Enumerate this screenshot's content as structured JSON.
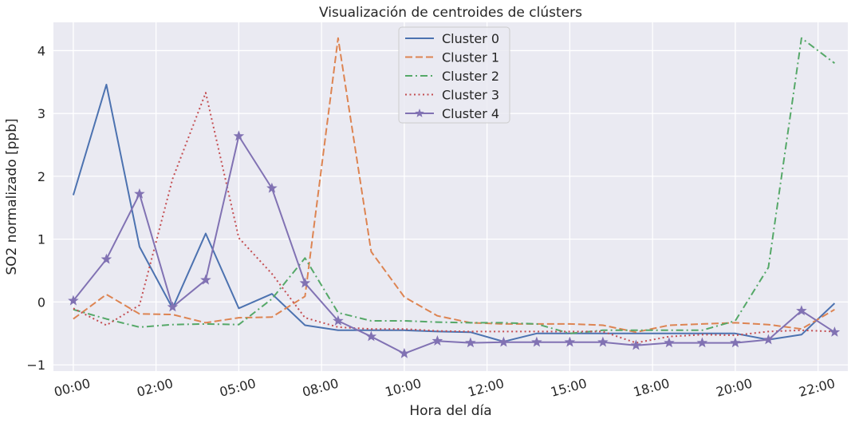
{
  "chart_data": {
    "type": "line",
    "title": "Visualización de centroides de clústers",
    "xlabel": "Hora del día",
    "ylabel": "SO2 normalizado [ppb]",
    "x_tick_labels": [
      "00:00",
      "02:00",
      "05:00",
      "08:00",
      "10:00",
      "12:00",
      "15:00",
      "18:00",
      "20:00",
      "22:00"
    ],
    "x_tick_positions": [
      0,
      2.5,
      5,
      7.5,
      10,
      12.5,
      15,
      17.5,
      20,
      22.5
    ],
    "xlim": [
      -0.6,
      23.4
    ],
    "ylim": [
      -1.1,
      4.45
    ],
    "y_ticks": [
      -1,
      0,
      1,
      2,
      3,
      4
    ],
    "x": [
      0,
      1,
      2,
      3,
      4,
      5,
      6,
      7,
      8,
      9,
      10,
      11,
      12,
      13,
      14,
      15,
      16,
      17,
      18,
      19,
      20,
      21,
      22,
      23
    ],
    "series": [
      {
        "name": "Cluster 0",
        "color": "#4c72b0",
        "dash": "solid",
        "marker": "none",
        "values": [
          1.7,
          3.46,
          0.88,
          -0.1,
          1.09,
          -0.1,
          0.13,
          -0.37,
          -0.45,
          -0.45,
          -0.45,
          -0.47,
          -0.48,
          -0.63,
          -0.5,
          -0.5,
          -0.5,
          -0.5,
          -0.5,
          -0.5,
          -0.5,
          -0.6,
          -0.52,
          -0.02
        ]
      },
      {
        "name": "Cluster 1",
        "color": "#dd8452",
        "dash": "dashed",
        "marker": "none",
        "values": [
          -0.27,
          0.12,
          -0.19,
          -0.2,
          -0.33,
          -0.25,
          -0.24,
          0.09,
          4.2,
          0.8,
          0.08,
          -0.22,
          -0.33,
          -0.35,
          -0.35,
          -0.35,
          -0.37,
          -0.48,
          -0.37,
          -0.35,
          -0.33,
          -0.36,
          -0.43,
          -0.12
        ]
      },
      {
        "name": "Cluster 2",
        "color": "#55a868",
        "dash": "dashdot",
        "marker": "none",
        "values": [
          -0.12,
          -0.27,
          -0.4,
          -0.36,
          -0.35,
          -0.36,
          0.05,
          0.7,
          -0.17,
          -0.3,
          -0.3,
          -0.32,
          -0.33,
          -0.33,
          -0.35,
          -0.5,
          -0.45,
          -0.45,
          -0.45,
          -0.45,
          -0.3,
          0.55,
          4.2,
          3.8
        ]
      },
      {
        "name": "Cluster 3",
        "color": "#c44e52",
        "dash": "dotted",
        "marker": "none",
        "values": [
          -0.1,
          -0.37,
          -0.05,
          1.96,
          3.33,
          1.02,
          0.45,
          -0.25,
          -0.4,
          -0.43,
          -0.43,
          -0.46,
          -0.47,
          -0.47,
          -0.47,
          -0.47,
          -0.47,
          -0.65,
          -0.55,
          -0.52,
          -0.53,
          -0.47,
          -0.45,
          -0.47
        ]
      },
      {
        "name": "Cluster 4",
        "color": "#8172b3",
        "dash": "solid",
        "marker": "star",
        "values": [
          0.02,
          0.68,
          1.72,
          -0.08,
          0.35,
          2.64,
          1.81,
          0.3,
          -0.3,
          -0.55,
          -0.82,
          -0.62,
          -0.65,
          -0.64,
          -0.64,
          -0.64,
          -0.64,
          -0.69,
          -0.65,
          -0.65,
          -0.65,
          -0.6,
          -0.14,
          -0.48
        ]
      }
    ],
    "grid": true,
    "legend_position": "top-center",
    "background": "#eaeaf2",
    "grid_color": "#ffffff"
  }
}
